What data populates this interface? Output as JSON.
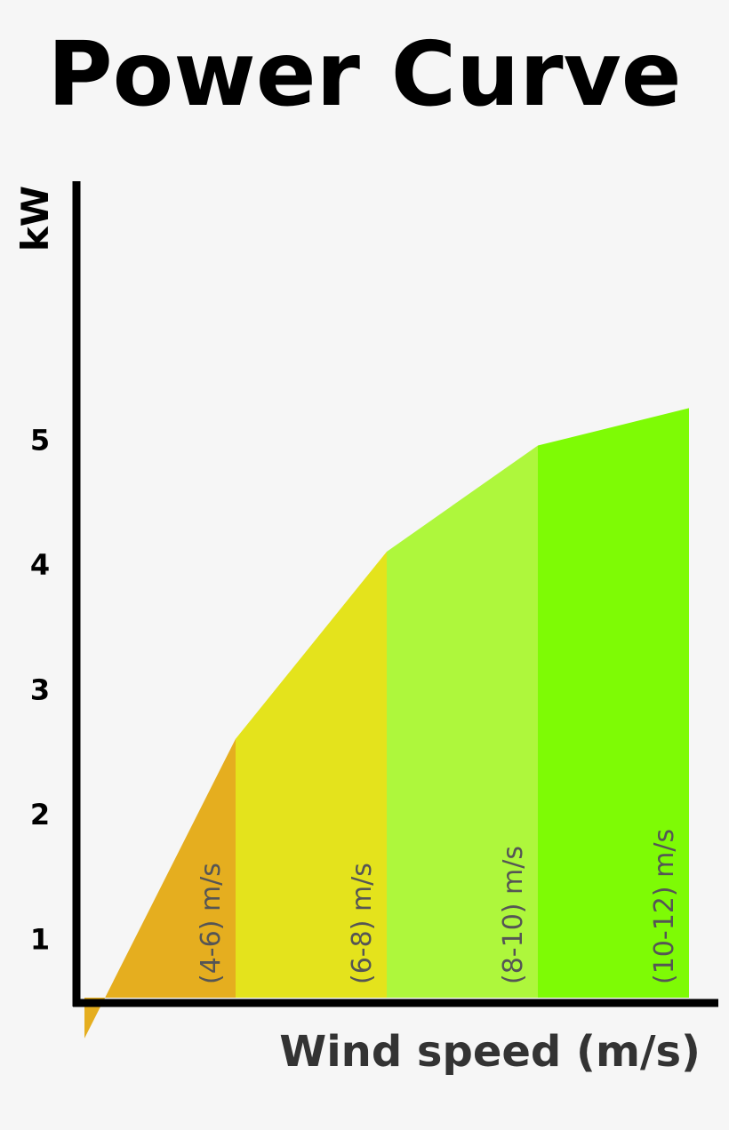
{
  "chart_data": {
    "type": "area",
    "title": "Power Curve",
    "xlabel": "Wind speed (m/s)",
    "ylabel": "kW",
    "yticks": [
      "1",
      "2",
      "3",
      "4",
      "5"
    ],
    "ylim": [
      0,
      6
    ],
    "xlim": [
      4,
      12
    ],
    "x": [
      4,
      6,
      8,
      10,
      12
    ],
    "y": [
      0.2,
      2.6,
      4.1,
      4.95,
      5.25
    ],
    "grid": false,
    "legend": "none",
    "bands": [
      {
        "label": "(4-6) m/s",
        "x0": 4,
        "x1": 6,
        "color": "#e5ae1f"
      },
      {
        "label": "(6-8) m/s",
        "x0": 6,
        "x1": 8,
        "color": "#e4e31c"
      },
      {
        "label": "(8-10) m/s",
        "x0": 8,
        "x1": 10,
        "color": "#aef73c"
      },
      {
        "label": "(10-12) m/s",
        "x0": 10,
        "x1": 12,
        "color": "#7efb05"
      }
    ]
  },
  "colors": {
    "background": "#f6f6f6",
    "axis": "#000000",
    "band_label": "#555555",
    "xlabel": "#333333"
  }
}
